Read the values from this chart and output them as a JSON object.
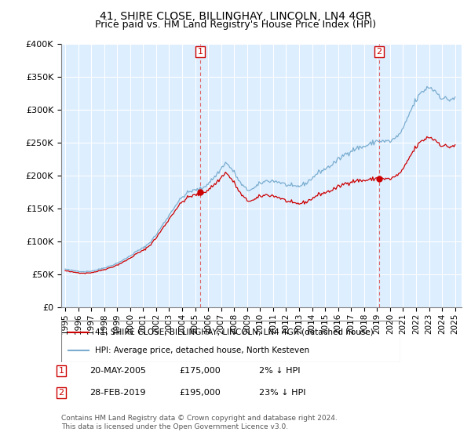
{
  "title": "41, SHIRE CLOSE, BILLINGHAY, LINCOLN, LN4 4GR",
  "subtitle": "Price paid vs. HM Land Registry's House Price Index (HPI)",
  "legend_line1": "41, SHIRE CLOSE, BILLINGHAY, LINCOLN, LN4 4GR (detached house)",
  "legend_line2": "HPI: Average price, detached house, North Kesteven",
  "annotation1_label": "1",
  "annotation1_date": "20-MAY-2005",
  "annotation1_price": "£175,000",
  "annotation1_pct": "2% ↓ HPI",
  "annotation2_label": "2",
  "annotation2_date": "28-FEB-2019",
  "annotation2_price": "£195,000",
  "annotation2_pct": "23% ↓ HPI",
  "footer": "Contains HM Land Registry data © Crown copyright and database right 2024.\nThis data is licensed under the Open Government Licence v3.0.",
  "sale1_year": 2005.38,
  "sale1_value": 175000,
  "sale2_year": 2019.16,
  "sale2_value": 195000,
  "red_color": "#cc0000",
  "blue_color": "#7aadcf",
  "plot_bg_color": "#ddeeff",
  "ylim": [
    0,
    400000
  ],
  "xlim": [
    1994.7,
    2025.5
  ],
  "yticks": [
    0,
    50000,
    100000,
    150000,
    200000,
    250000,
    300000,
    350000,
    400000
  ],
  "ytick_labels": [
    "£0",
    "£50K",
    "£100K",
    "£150K",
    "£200K",
    "£250K",
    "£300K",
    "£350K",
    "£400K"
  ],
  "xticks": [
    1995,
    1996,
    1997,
    1998,
    1999,
    2000,
    2001,
    2002,
    2003,
    2004,
    2005,
    2006,
    2007,
    2008,
    2009,
    2010,
    2011,
    2012,
    2013,
    2014,
    2015,
    2016,
    2017,
    2018,
    2019,
    2020,
    2021,
    2022,
    2023,
    2024,
    2025
  ]
}
